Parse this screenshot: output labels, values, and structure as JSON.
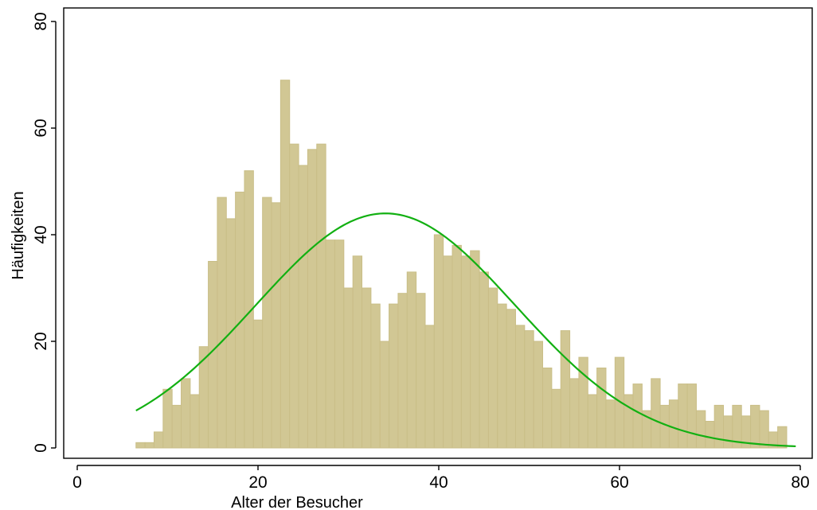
{
  "chart_data": {
    "type": "bar",
    "title": "",
    "xlabel": "Alter der Besucher",
    "ylabel": "Häufigkeiten",
    "xlim": [
      0,
      80
    ],
    "ylim": [
      0,
      80
    ],
    "xticks": [
      0,
      20,
      40,
      60,
      80
    ],
    "yticks": [
      0,
      20,
      40,
      60,
      80
    ],
    "grid": false,
    "bin_width": 1,
    "bins_x": [
      7,
      8,
      9,
      10,
      11,
      12,
      13,
      14,
      15,
      16,
      17,
      18,
      19,
      20,
      21,
      22,
      23,
      24,
      25,
      26,
      27,
      28,
      29,
      30,
      31,
      32,
      33,
      34,
      35,
      36,
      37,
      38,
      39,
      40,
      41,
      42,
      43,
      44,
      45,
      46,
      47,
      48,
      49,
      50,
      51,
      52,
      53,
      54,
      55,
      56,
      57,
      58,
      59,
      60,
      61,
      62,
      63,
      64,
      65,
      66,
      67,
      68,
      69,
      70,
      71,
      72,
      73,
      74,
      75,
      76,
      77,
      78,
      79
    ],
    "values": [
      1,
      1,
      3,
      11,
      8,
      13,
      10,
      19,
      35,
      47,
      43,
      48,
      52,
      24,
      47,
      46,
      69,
      57,
      53,
      56,
      57,
      39,
      39,
      30,
      36,
      30,
      27,
      20,
      27,
      29,
      33,
      29,
      23,
      40,
      36,
      38,
      36,
      37,
      33,
      30,
      27,
      26,
      23,
      22,
      20,
      15,
      11,
      22,
      13,
      17,
      10,
      15,
      9,
      17,
      10,
      12,
      7,
      13,
      8,
      9,
      12,
      12,
      7,
      5,
      8,
      6,
      8,
      6,
      8,
      7,
      3,
      4,
      0
    ],
    "normal_curve": {
      "mean": 34.1,
      "sd": 14.4,
      "peak": 44,
      "x_range": [
        6.5,
        79.5
      ],
      "color": "#12b012"
    },
    "bar_color": "#d1c794"
  }
}
